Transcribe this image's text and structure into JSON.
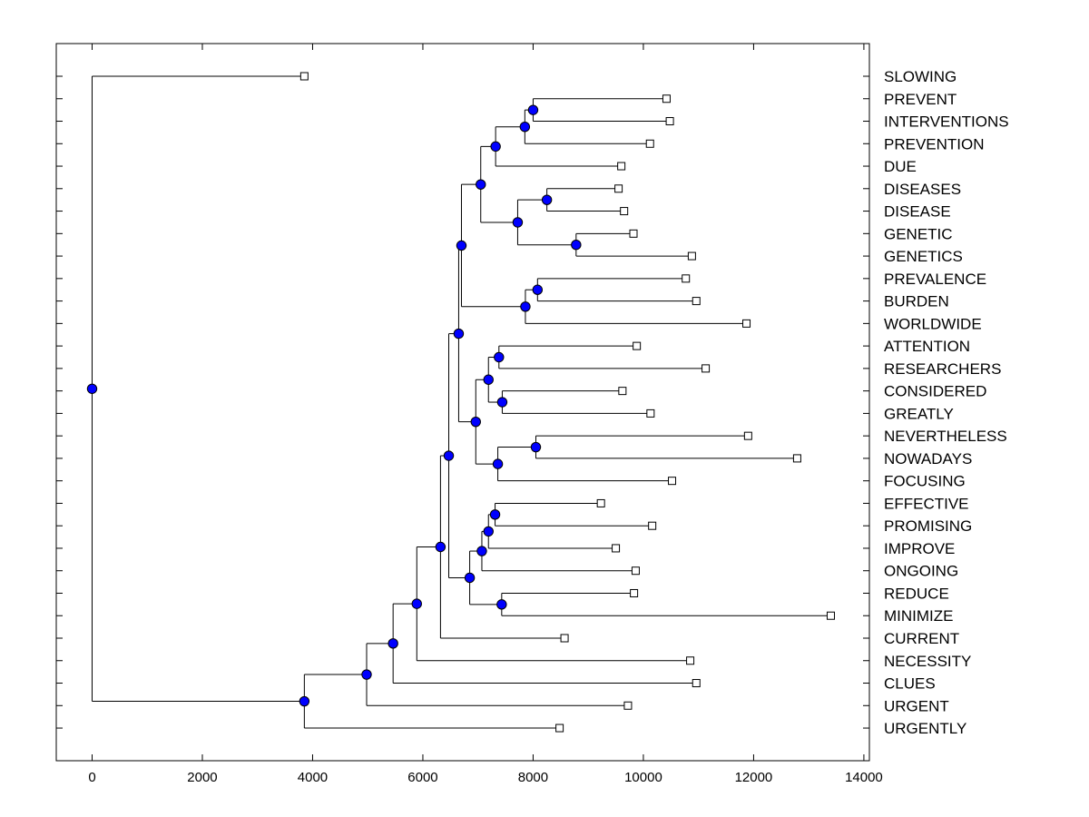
{
  "chart_data": {
    "type": "dendrogram",
    "orientation": "horizontal",
    "x_ticks": [
      "0",
      "2000",
      "4000",
      "6000",
      "8000",
      "10000",
      "12000",
      "14000"
    ],
    "x_tick_values": [
      0,
      2000,
      4000,
      6000,
      8000,
      10000,
      12000,
      14000
    ],
    "xlim": [
      -650,
      14100
    ],
    "node_color": "#0000ff",
    "leaves": [
      {
        "label": "SLOWING",
        "x": 3850
      },
      {
        "label": "PREVENT",
        "x": 10420
      },
      {
        "label": "INTERVENTIONS",
        "x": 10480
      },
      {
        "label": "PREVENTION",
        "x": 10120
      },
      {
        "label": "DUE",
        "x": 9600
      },
      {
        "label": "DISEASES",
        "x": 9550
      },
      {
        "label": "DISEASE",
        "x": 9650
      },
      {
        "label": "GENETIC",
        "x": 9820
      },
      {
        "label": "GENETICS",
        "x": 10880
      },
      {
        "label": "PREVALENCE",
        "x": 10770
      },
      {
        "label": "BURDEN",
        "x": 10960
      },
      {
        "label": "WORLDWIDE",
        "x": 11870
      },
      {
        "label": "ATTENTION",
        "x": 9880
      },
      {
        "label": "RESEARCHERS",
        "x": 11130
      },
      {
        "label": "CONSIDERED",
        "x": 9620
      },
      {
        "label": "GREATLY",
        "x": 10130
      },
      {
        "label": "NEVERTHELESS",
        "x": 11900
      },
      {
        "label": "NOWADAYS",
        "x": 12790
      },
      {
        "label": "FOCUSING",
        "x": 10520
      },
      {
        "label": "EFFECTIVE",
        "x": 9230
      },
      {
        "label": "PROMISING",
        "x": 10160
      },
      {
        "label": "IMPROVE",
        "x": 9500
      },
      {
        "label": "ONGOING",
        "x": 9860
      },
      {
        "label": "REDUCE",
        "x": 9830
      },
      {
        "label": "MINIMIZE",
        "x": 13400
      },
      {
        "label": "CURRENT",
        "x": 8570
      },
      {
        "label": "NECESSITY",
        "x": 10850
      },
      {
        "label": "CLUES",
        "x": 10960
      },
      {
        "label": "URGENT",
        "x": 9720
      },
      {
        "label": "URGENTLY",
        "x": 8480
      }
    ],
    "merges": [
      {
        "id": "n1",
        "x": 8000,
        "children": [
          "PREVENT",
          "INTERVENTIONS"
        ]
      },
      {
        "id": "n2",
        "x": 7850,
        "children": [
          "n1",
          "PREVENTION"
        ]
      },
      {
        "id": "n3",
        "x": 7320,
        "children": [
          "n2",
          "DUE"
        ]
      },
      {
        "id": "n4",
        "x": 8250,
        "children": [
          "DISEASES",
          "DISEASE"
        ]
      },
      {
        "id": "n5",
        "x": 8780,
        "children": [
          "GENETIC",
          "GENETICS"
        ]
      },
      {
        "id": "n6",
        "x": 7720,
        "children": [
          "n4",
          "n5"
        ]
      },
      {
        "id": "n7",
        "x": 7050,
        "children": [
          "n3",
          "n6"
        ]
      },
      {
        "id": "n8",
        "x": 8080,
        "children": [
          "PREVALENCE",
          "BURDEN"
        ]
      },
      {
        "id": "n9",
        "x": 7860,
        "children": [
          "n8",
          "WORLDWIDE"
        ]
      },
      {
        "id": "n10",
        "x": 6700,
        "children": [
          "n7",
          "n9"
        ]
      },
      {
        "id": "n11",
        "x": 7380,
        "children": [
          "ATTENTION",
          "RESEARCHERS"
        ]
      },
      {
        "id": "n12",
        "x": 7440,
        "children": [
          "CONSIDERED",
          "GREATLY"
        ]
      },
      {
        "id": "n13",
        "x": 7190,
        "children": [
          "n11",
          "n12"
        ]
      },
      {
        "id": "n14",
        "x": 8050,
        "children": [
          "NEVERTHELESS",
          "NOWADAYS"
        ]
      },
      {
        "id": "n15",
        "x": 7360,
        "children": [
          "n14",
          "FOCUSING"
        ]
      },
      {
        "id": "n16",
        "x": 6960,
        "children": [
          "n13",
          "n15"
        ]
      },
      {
        "id": "n17",
        "x": 6650,
        "children": [
          "n10",
          "n16"
        ]
      },
      {
        "id": "n18",
        "x": 7310,
        "children": [
          "EFFECTIVE",
          "PROMISING"
        ]
      },
      {
        "id": "n19",
        "x": 7190,
        "children": [
          "n18",
          "IMPROVE"
        ]
      },
      {
        "id": "n20",
        "x": 7070,
        "children": [
          "n19",
          "ONGOING"
        ]
      },
      {
        "id": "n21",
        "x": 7430,
        "children": [
          "REDUCE",
          "MINIMIZE"
        ]
      },
      {
        "id": "n22",
        "x": 6850,
        "children": [
          "n20",
          "n21"
        ]
      },
      {
        "id": "n23",
        "x": 6470,
        "children": [
          "n17",
          "n22"
        ]
      },
      {
        "id": "n24",
        "x": 6320,
        "children": [
          "n23",
          "CURRENT"
        ]
      },
      {
        "id": "n25",
        "x": 5890,
        "children": [
          "n24",
          "NECESSITY"
        ]
      },
      {
        "id": "n26",
        "x": 5460,
        "children": [
          "n25",
          "CLUES"
        ]
      },
      {
        "id": "n27",
        "x": 4980,
        "children": [
          "n26",
          "URGENT"
        ]
      },
      {
        "id": "n28",
        "x": 3850,
        "children": [
          "n27",
          "URGENTLY"
        ]
      },
      {
        "id": "n29",
        "x": 0,
        "children": [
          "SLOWING",
          "n28"
        ]
      }
    ]
  }
}
